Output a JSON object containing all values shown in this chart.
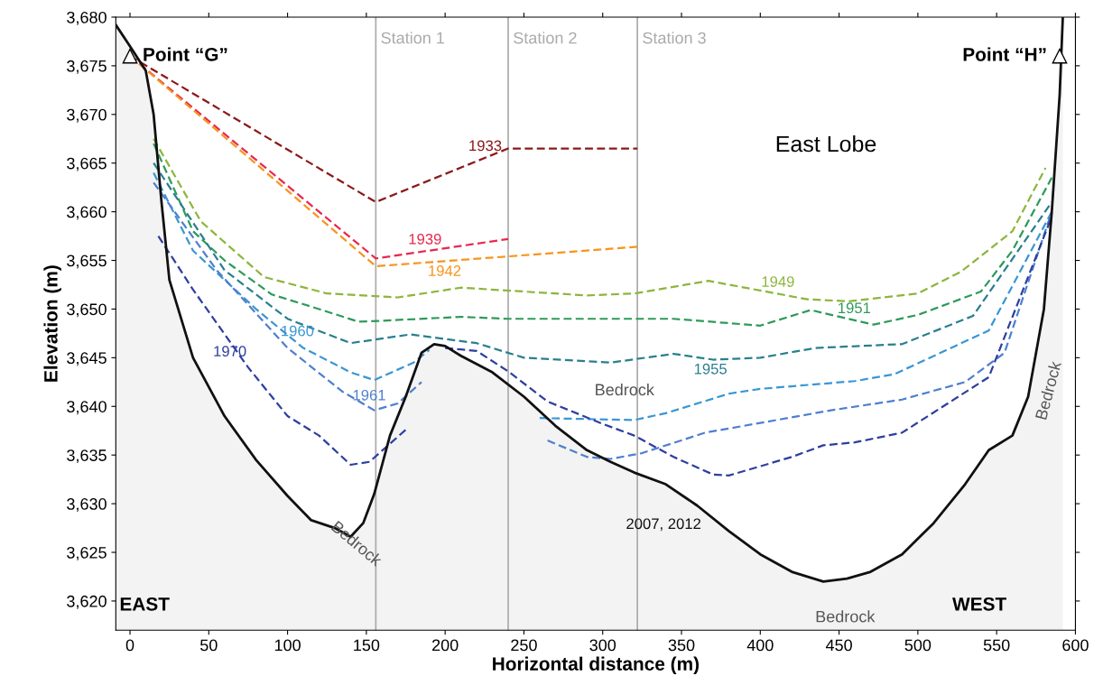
{
  "chart_data": {
    "type": "line",
    "xlabel": "Horizontal distance (m)",
    "ylabel": "Elevation (m)",
    "xlim": [
      -9,
      600
    ],
    "ylim": [
      3617,
      3680
    ],
    "xticks": [
      0,
      50,
      100,
      150,
      200,
      250,
      300,
      350,
      400,
      450,
      500,
      550,
      600
    ],
    "yticks": [
      {
        "value": 3620,
        "label": "3,620"
      },
      {
        "value": 3625,
        "label": "3,625"
      },
      {
        "value": 3630,
        "label": "3,630"
      },
      {
        "value": 3635,
        "label": "3,635"
      },
      {
        "value": 3640,
        "label": "3,640"
      },
      {
        "value": 3645,
        "label": "3,645"
      },
      {
        "value": 3650,
        "label": "3,650"
      },
      {
        "value": 3655,
        "label": "3,655"
      },
      {
        "value": 3660,
        "label": "3,660"
      },
      {
        "value": 3665,
        "label": "3,665"
      },
      {
        "value": 3670,
        "label": "3,670"
      },
      {
        "value": 3675,
        "label": "3,675"
      },
      {
        "value": 3680,
        "label": "3,680"
      }
    ],
    "line_style": "dashed",
    "grid": false,
    "legend": false,
    "series": [
      {
        "name": "2007, 2012",
        "type": "area",
        "color": "#111111",
        "x": [
          -9,
          0,
          10,
          15,
          20,
          25,
          40,
          60,
          80,
          100,
          115,
          130,
          140,
          148,
          155,
          165,
          175,
          185,
          193,
          200,
          210,
          230,
          250,
          270,
          290,
          305,
          320,
          340,
          360,
          380,
          400,
          420,
          440,
          455,
          470,
          490,
          510,
          530,
          545,
          560,
          570,
          580,
          585,
          590,
          592
        ],
        "values": [
          3679.2,
          3677,
          3674.5,
          3670,
          3661,
          3653,
          3645,
          3639,
          3634.5,
          3630.8,
          3628.3,
          3627.5,
          3626.6,
          3628,
          3631,
          3637,
          3641,
          3645.5,
          3646.4,
          3646.2,
          3645.2,
          3643.5,
          3641,
          3638,
          3635.5,
          3634.3,
          3633.2,
          3632,
          3629.8,
          3627.2,
          3624.8,
          3623,
          3622,
          3622.3,
          3623,
          3624.8,
          3628,
          3632,
          3635.5,
          3637,
          3641,
          3650,
          3660,
          3672,
          3680
        ]
      },
      {
        "name": "1933",
        "color": "#8b1a1a",
        "x": [
          0,
          156,
          240,
          322
        ],
        "values": [
          3676,
          3661,
          3666.5,
          3666.5
        ]
      },
      {
        "name": "1939",
        "color": "#e8274f",
        "x": [
          0,
          156,
          240
        ],
        "values": [
          3676,
          3655.2,
          3657.2
        ]
      },
      {
        "name": "1942",
        "color": "#f7941d",
        "x": [
          0,
          156,
          322
        ],
        "values": [
          3676,
          3654.4,
          3656.4
        ]
      },
      {
        "name": "1949",
        "color": "#8cb63c",
        "x": [
          15,
          45,
          85,
          125,
          160,
          170,
          210,
          290,
          320,
          367,
          430,
          456,
          500,
          527,
          560,
          581
        ],
        "values": [
          3667.5,
          3659,
          3653.3,
          3651.6,
          3651.3,
          3651.2,
          3652.2,
          3651.4,
          3651.6,
          3652.9,
          3651,
          3650.8,
          3651.6,
          3653.8,
          3658,
          3664.5
        ]
      },
      {
        "name": "1951",
        "color": "#2e9a5a",
        "x": [
          15,
          40,
          60,
          90,
          120,
          145,
          160,
          210,
          240,
          320,
          345,
          400,
          432,
          472,
          500,
          540,
          560,
          585
        ],
        "values": [
          3667,
          3658,
          3655,
          3651.5,
          3650,
          3648.7,
          3648.8,
          3649.2,
          3649,
          3649,
          3649,
          3648.3,
          3649.9,
          3648.4,
          3649.4,
          3651.8,
          3656,
          3663.5
        ]
      },
      {
        "name": "1955",
        "color": "#2a7f8e",
        "x": [
          15,
          60,
          100,
          140,
          178,
          220,
          250,
          305,
          345,
          370,
          400,
          435,
          490,
          535,
          585
        ],
        "values": [
          3665,
          3654,
          3649,
          3646.5,
          3647.4,
          3646.5,
          3645,
          3644.5,
          3645.4,
          3644.8,
          3645,
          3646,
          3646.4,
          3649.3,
          3661
        ]
      },
      {
        "name": "1960",
        "color": "#3a96d4",
        "x": [
          15,
          40,
          80,
          110,
          140,
          155,
          180,
          190,
          225,
          260,
          320,
          340,
          380,
          400,
          460,
          485,
          545,
          585
        ],
        "values": [
          3664,
          3656,
          3650,
          3646,
          3643.5,
          3642.7,
          3644.5,
          3645.8,
          null,
          3638.8,
          3638.6,
          3639.3,
          3641.3,
          3641.8,
          3642.6,
          3643.3,
          3647.8,
          3660
        ]
      },
      {
        "name": "1961",
        "color": "#4f7fcf",
        "x": [
          15,
          55,
          100,
          135,
          155,
          170,
          185,
          225,
          265,
          290,
          305,
          325,
          365,
          400,
          445,
          490,
          530,
          555,
          585
        ],
        "values": [
          3663,
          3654,
          3646,
          3641.5,
          3639.6,
          3640.3,
          3642.5,
          null,
          3636.5,
          3634.8,
          3634.6,
          3635.2,
          3637.3,
          3638.3,
          3639.6,
          3640.7,
          3642.5,
          3645.5,
          3660
        ]
      },
      {
        "name": "1970",
        "color": "#2e3f9e",
        "x": [
          18,
          40,
          75,
          100,
          120,
          140,
          152,
          175,
          188,
          200,
          220,
          240,
          265,
          300,
          320,
          345,
          370,
          380,
          420,
          440,
          460,
          490,
          545,
          585
        ],
        "values": [
          3657.5,
          3652,
          3644,
          3639,
          3637,
          3634,
          3634.3,
          3637.6,
          null,
          3646,
          3645.7,
          3643.6,
          3640.5,
          3638.2,
          3637,
          3634.8,
          3633,
          3632.9,
          3634.8,
          3636,
          3636.3,
          3637.3,
          3643,
          3659.5
        ]
      }
    ],
    "ref_lines": [
      {
        "axis": "x",
        "value": 156,
        "label": "Station 1",
        "color": "#aaaaaa"
      },
      {
        "axis": "x",
        "value": 240,
        "label": "Station 2",
        "color": "#aaaaaa"
      },
      {
        "axis": "x",
        "value": 322,
        "label": "Station 3",
        "color": "#aaaaaa"
      }
    ],
    "annotations": [
      {
        "text": "Point “G”",
        "x": 0,
        "y": 3676
      },
      {
        "text": "Point “H”",
        "x": 590,
        "y": 3676
      },
      "East Lobe",
      "EAST",
      "WEST",
      "Bedrock",
      "Bedrock",
      "Bedrock",
      "Bedrock"
    ]
  }
}
